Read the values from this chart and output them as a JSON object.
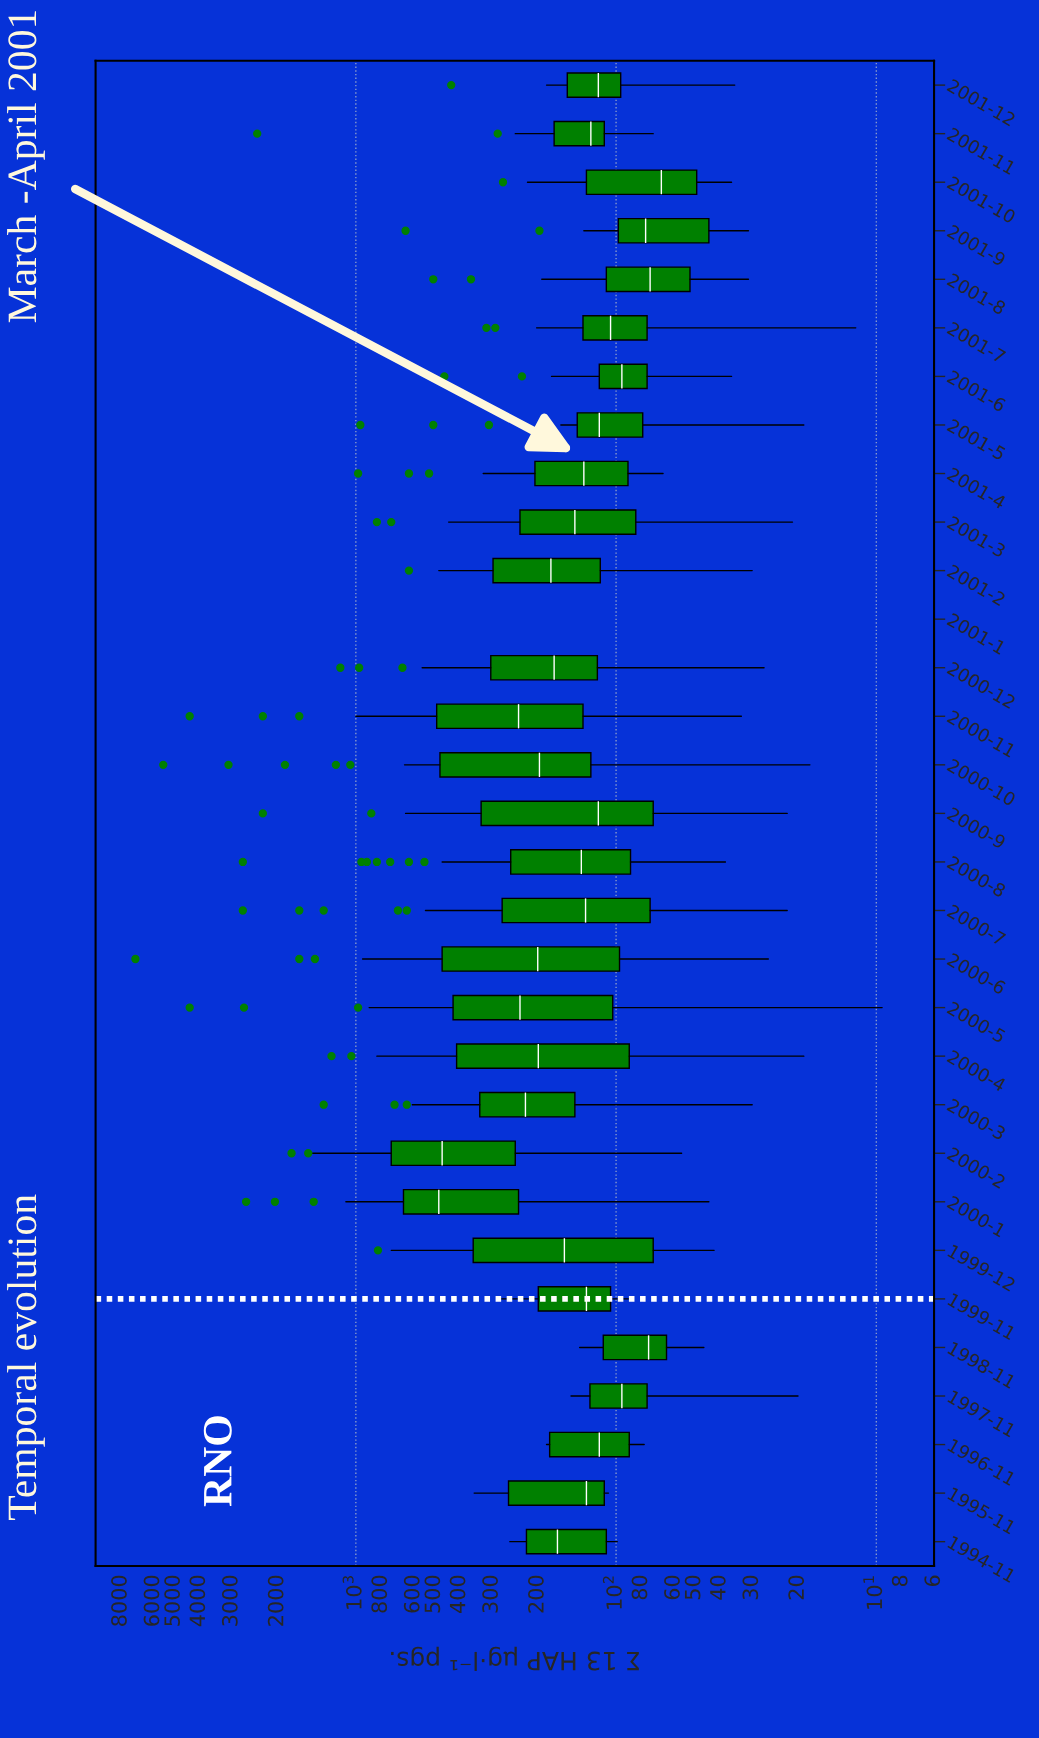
{
  "chart_data": {
    "type": "box",
    "orientation": "horizontal",
    "log": "x",
    "title": "Temporal evolution",
    "xlabel": "Σ 13 HAP µg·l⁻¹ pgs.",
    "annotations": [
      "March -April 2001",
      "RNO"
    ],
    "categories": [
      "2001-12",
      "2001-11",
      "2001-10",
      "2001-9",
      "2001-8",
      "2001-7",
      "2001-6",
      "2001-5",
      "2001-4",
      "2001-3",
      "2001-2",
      "2001-1",
      "2000-12",
      "2000-11",
      "2000-10",
      "2000-9",
      "2000-8",
      "2000-7",
      "2000-6",
      "2000-5",
      "2000-4",
      "2000-3",
      "2000-2",
      "2000-1",
      "1999-12",
      "1999-11",
      "1998-11",
      "1997-11",
      "1996-11",
      "1995-11",
      "1994-11"
    ],
    "series": [
      {
        "color": "#008000",
        "boxes": [
          {
            "low": 35,
            "q1": 96,
            "median": 117,
            "q3": 154,
            "high": 185,
            "outliers": [
              430
            ]
          },
          {
            "low": 72,
            "q1": 111,
            "median": 125,
            "q3": 173,
            "high": 244,
            "outliers": [
              2393,
              285
            ]
          },
          {
            "low": 36,
            "q1": 49,
            "median": 67,
            "q3": 130,
            "high": 219,
            "outliers": [
              272
            ]
          },
          {
            "low": 31,
            "q1": 44,
            "median": 77,
            "q3": 98,
            "high": 133,
            "outliers": [
              644,
              197
            ]
          },
          {
            "low": 31,
            "q1": 52,
            "median": 74,
            "q3": 109,
            "high": 193,
            "outliers": [
              504,
              361
            ]
          },
          {
            "low": 12,
            "q1": 76,
            "median": 105,
            "q3": 134,
            "high": 202,
            "outliers": [
              315,
              291
            ]
          },
          {
            "low": 36,
            "q1": 76,
            "median": 95,
            "q3": 116,
            "high": 177,
            "outliers": [
              457,
              230
            ]
          },
          {
            "low": 19,
            "q1": 79,
            "median": 116,
            "q3": 141,
            "high": 163,
            "outliers": [
              961,
              504,
              308
            ]
          },
          {
            "low": 66,
            "q1": 90,
            "median": 133,
            "q3": 205,
            "high": 324,
            "outliers": [
              980,
              625,
              523
            ]
          },
          {
            "low": 21,
            "q1": 84,
            "median": 144,
            "q3": 234,
            "high": 440,
            "outliers": [
              830,
              731
            ]
          },
          {
            "low": 30,
            "q1": 115,
            "median": 178,
            "q3": 297,
            "high": 480,
            "outliers": [
              625
            ]
          },
          null,
          {
            "low": 27,
            "q1": 118,
            "median": 173,
            "q3": 303,
            "high": 556,
            "outliers": [
              1147,
              971,
              662
            ]
          },
          {
            "low": 33,
            "q1": 134,
            "median": 237,
            "q3": 489,
            "high": 1000,
            "outliers": [
              4350,
              2277,
              1649
            ]
          },
          {
            "low": 18,
            "q1": 125,
            "median": 197,
            "q3": 475,
            "high": 650,
            "outliers": [
              5495,
              3085,
              1872,
              1193,
              1050
            ]
          },
          {
            "low": 22,
            "q1": 72,
            "median": 117,
            "q3": 330,
            "high": 644,
            "outliers": [
              2277,
              872
            ]
          },
          {
            "low": 38,
            "q1": 88,
            "median": 136,
            "q3": 254,
            "high": 466,
            "outliers": [
              2718,
              952,
              907,
              830,
              738,
              625,
              545
            ]
          },
          {
            "low": 22,
            "q1": 74,
            "median": 131,
            "q3": 274,
            "high": 540,
            "outliers": [
              2718,
              1649,
              1329,
              689,
              637
            ]
          },
          {
            "low": 26,
            "q1": 97,
            "median": 200,
            "q3": 466,
            "high": 942,
            "outliers": [
              7030,
              1649,
              1436
            ]
          },
          {
            "low": 9.5,
            "q1": 103,
            "median": 234,
            "q3": 423,
            "high": 889,
            "outliers": [
              4350,
              2690,
              980
            ]
          },
          {
            "low": 19,
            "q1": 89,
            "median": 199,
            "q3": 410,
            "high": 830,
            "outliers": [
              1240,
              1040
            ]
          },
          {
            "low": 30,
            "q1": 144,
            "median": 223,
            "q3": 334,
            "high": 607,
            "outliers": [
              1329,
              710,
              637
            ]
          },
          {
            "low": 56,
            "q1": 244,
            "median": 466,
            "q3": 731,
            "high": 1466,
            "outliers": [
              1766,
              1524
            ]
          },
          {
            "low": 44,
            "q1": 237,
            "median": 480,
            "q3": 656,
            "high": 1092,
            "outliers": [
              2640,
              2046,
              1452
            ]
          },
          {
            "low": 42,
            "q1": 72,
            "median": 158,
            "q3": 354,
            "high": 731,
            "outliers": [
              822
            ]
          },
          {
            "low": 86,
            "q1": 105,
            "median": 130,
            "q3": 199,
            "high": 280
          },
          {
            "low": 46,
            "q1": 64,
            "median": 75,
            "q3": 112,
            "high": 138
          },
          {
            "low": 20,
            "q1": 76,
            "median": 95,
            "q3": 126,
            "high": 149
          },
          {
            "low": 78,
            "q1": 89,
            "median": 116,
            "q3": 180,
            "high": 185
          },
          {
            "low": 107,
            "q1": 111,
            "median": 130,
            "q3": 259,
            "high": 351
          },
          {
            "low": 99,
            "q1": 109,
            "median": 168,
            "q3": 221,
            "high": 256
          }
        ]
      }
    ],
    "xlim": [
      10000,
      6
    ],
    "xticks": [
      8000,
      6000,
      5000,
      4000,
      3000,
      2000,
      {
        "value": 1000,
        "label": "10$^{3}$"
      },
      800,
      600,
      500,
      400,
      300,
      200,
      {
        "value": 100,
        "label": "10$^{2}$"
      },
      80,
      60,
      50,
      40,
      30,
      20,
      {
        "value": 10,
        "label": "10$^{1}$"
      },
      8,
      6
    ],
    "ref_lines": [
      {
        "axis": "y",
        "value": "1999-11",
        "color": "#ffffff",
        "line_style": "dotted"
      }
    ],
    "grid": "x"
  }
}
